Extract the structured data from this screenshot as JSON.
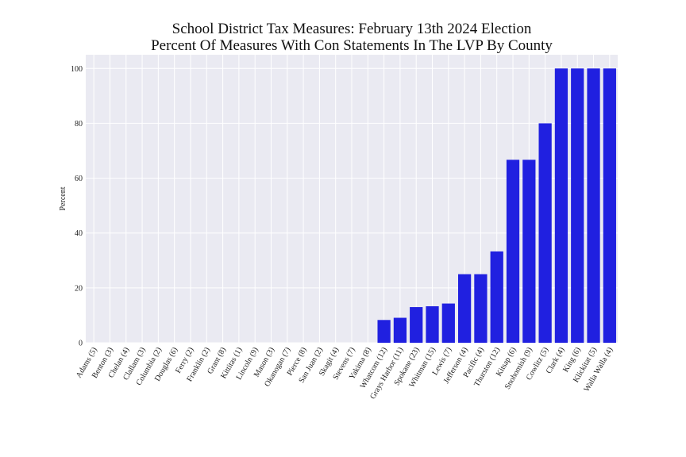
{
  "chart_data": {
    "type": "bar",
    "title_lines": [
      "School District Tax Measures: February 13th 2024 Election",
      "Percent Of Measures With Con Statements In The LVP By County"
    ],
    "xlabel": "",
    "ylabel": "Percent",
    "ylim": [
      0,
      105
    ],
    "yticks": [
      0,
      20,
      40,
      60,
      80,
      100
    ],
    "grid": true,
    "bar_color": "#2020e0",
    "background_color": "#eaeaf2",
    "categories": [
      "Adams (5)",
      "Benton (3)",
      "Chelan (4)",
      "Clallam (3)",
      "Columbia (2)",
      "Douglas (6)",
      "Ferry (2)",
      "Franklin (2)",
      "Grant (8)",
      "Kittitas (1)",
      "Lincoln (9)",
      "Mason (3)",
      "Okanogan (7)",
      "Pierce (8)",
      "San Juan (2)",
      "Skagit (4)",
      "Stevens (7)",
      "Yakima (8)",
      "Whatcom (12)",
      "Grays Harbor (11)",
      "Spokane (23)",
      "Whitman (15)",
      "Lewis (7)",
      "Jefferson (4)",
      "Pacific (4)",
      "Thurston (12)",
      "Kitsap (6)",
      "Snohomish (9)",
      "Cowlitz (5)",
      "Clark (4)",
      "King (6)",
      "Klickitat (5)",
      "Walla Walla (4)"
    ],
    "values": [
      0,
      0,
      0,
      0,
      0,
      0,
      0,
      0,
      0,
      0,
      0,
      0,
      0,
      0,
      0,
      0,
      0,
      0,
      8.3,
      9.1,
      13.0,
      13.3,
      14.3,
      25.0,
      25.0,
      33.3,
      66.7,
      66.7,
      80.0,
      100,
      100,
      100,
      100
    ]
  }
}
